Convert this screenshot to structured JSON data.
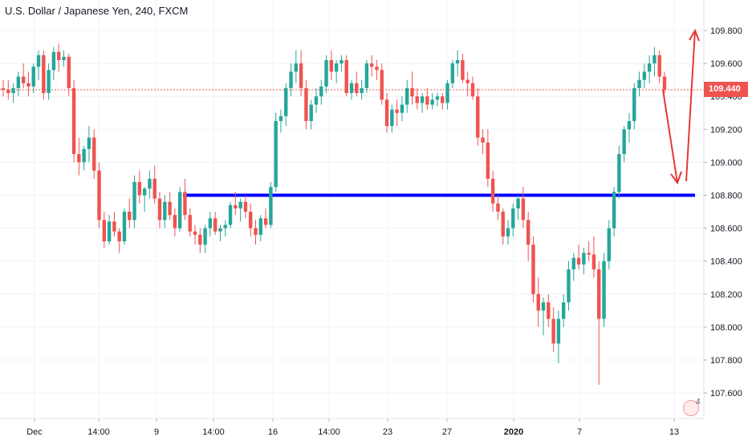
{
  "chart_data": {
    "type": "candlestick",
    "title": "U.S. Dollar / Japanese Yen, 240, FXCM",
    "ylim": [
      107.5,
      109.85
    ],
    "y_ticks": [
      "109.800",
      "109.600",
      "109.400",
      "109.200",
      "109.000",
      "108.800",
      "108.600",
      "108.400",
      "108.200",
      "108.000",
      "107.800",
      "107.600"
    ],
    "x_ticks": [
      "Dec",
      "14:00",
      "9",
      "14:00",
      "16",
      "14:00",
      "23",
      "27",
      "2020",
      "7",
      "13"
    ],
    "last_price": "109.440",
    "horizontal_line": 108.8,
    "colors": {
      "up": "#26a69a",
      "down": "#ef5350",
      "level": "#0000ff",
      "arrow": "#e53935",
      "price_line": "#ef5350"
    },
    "candles": [
      [
        109.45,
        109.5,
        109.4,
        109.44
      ],
      [
        109.44,
        109.5,
        109.38,
        109.42
      ],
      [
        109.42,
        109.48,
        109.36,
        109.45
      ],
      [
        109.45,
        109.55,
        109.4,
        109.52
      ],
      [
        109.52,
        109.6,
        109.45,
        109.48
      ],
      [
        109.48,
        109.55,
        109.4,
        109.46
      ],
      [
        109.46,
        109.6,
        109.42,
        109.58
      ],
      [
        109.58,
        109.68,
        109.5,
        109.65
      ],
      [
        109.65,
        109.68,
        109.38,
        109.42
      ],
      [
        109.42,
        109.6,
        109.38,
        109.56
      ],
      [
        109.56,
        109.7,
        109.5,
        109.67
      ],
      [
        109.67,
        109.72,
        109.55,
        109.62
      ],
      [
        109.62,
        109.68,
        109.58,
        109.64
      ],
      [
        109.64,
        109.66,
        109.4,
        109.45
      ],
      [
        109.45,
        109.5,
        109.0,
        109.05
      ],
      [
        109.05,
        109.15,
        108.92,
        109.0
      ],
      [
        109.0,
        109.1,
        108.95,
        109.08
      ],
      [
        109.08,
        109.22,
        109.0,
        109.15
      ],
      [
        109.15,
        109.2,
        108.9,
        108.95
      ],
      [
        108.95,
        109.0,
        108.6,
        108.65
      ],
      [
        108.65,
        108.7,
        108.48,
        108.52
      ],
      [
        108.52,
        108.68,
        108.5,
        108.64
      ],
      [
        108.64,
        108.7,
        108.55,
        108.58
      ],
      [
        108.58,
        108.6,
        108.45,
        108.52
      ],
      [
        108.52,
        108.72,
        108.5,
        108.7
      ],
      [
        108.7,
        108.78,
        108.6,
        108.65
      ],
      [
        108.65,
        108.92,
        108.6,
        108.88
      ],
      [
        108.88,
        108.95,
        108.75,
        108.8
      ],
      [
        108.8,
        108.85,
        108.7,
        108.84
      ],
      [
        108.84,
        108.95,
        108.78,
        108.9
      ],
      [
        108.9,
        108.98,
        108.75,
        108.78
      ],
      [
        108.78,
        108.82,
        108.6,
        108.65
      ],
      [
        108.65,
        108.8,
        108.6,
        108.76
      ],
      [
        108.76,
        108.82,
        108.65,
        108.68
      ],
      [
        108.68,
        108.72,
        108.55,
        108.6
      ],
      [
        108.6,
        108.85,
        108.58,
        108.82
      ],
      [
        108.82,
        108.9,
        108.65,
        108.68
      ],
      [
        108.68,
        108.72,
        108.55,
        108.58
      ],
      [
        108.58,
        108.62,
        108.5,
        108.56
      ],
      [
        108.56,
        108.6,
        108.45,
        108.5
      ],
      [
        108.5,
        108.62,
        108.45,
        108.6
      ],
      [
        108.6,
        108.7,
        108.55,
        108.66
      ],
      [
        108.66,
        108.7,
        108.56,
        108.58
      ],
      [
        108.58,
        108.62,
        108.52,
        108.6
      ],
      [
        108.6,
        108.65,
        108.55,
        108.62
      ],
      [
        108.62,
        108.76,
        108.6,
        108.74
      ],
      [
        108.74,
        108.82,
        108.68,
        108.72
      ],
      [
        108.72,
        108.78,
        108.64,
        108.76
      ],
      [
        108.76,
        108.8,
        108.66,
        108.7
      ],
      [
        108.7,
        108.75,
        108.55,
        108.6
      ],
      [
        108.6,
        108.65,
        108.5,
        108.56
      ],
      [
        108.56,
        108.68,
        108.52,
        108.66
      ],
      [
        108.66,
        108.72,
        108.6,
        108.62
      ],
      [
        108.62,
        108.88,
        108.6,
        108.85
      ],
      [
        108.85,
        109.3,
        108.82,
        109.25
      ],
      [
        109.25,
        109.32,
        109.18,
        109.28
      ],
      [
        109.28,
        109.48,
        109.22,
        109.45
      ],
      [
        109.45,
        109.6,
        109.4,
        109.55
      ],
      [
        109.55,
        109.68,
        109.48,
        109.6
      ],
      [
        109.6,
        109.68,
        109.4,
        109.45
      ],
      [
        109.45,
        109.5,
        109.2,
        109.25
      ],
      [
        109.25,
        109.38,
        109.2,
        109.35
      ],
      [
        109.35,
        109.45,
        109.3,
        109.4
      ],
      [
        109.4,
        109.5,
        109.35,
        109.46
      ],
      [
        109.46,
        109.65,
        109.42,
        109.62
      ],
      [
        109.62,
        109.68,
        109.5,
        109.55
      ],
      [
        109.55,
        109.62,
        109.48,
        109.6
      ],
      [
        109.6,
        109.65,
        109.55,
        109.62
      ],
      [
        109.62,
        109.65,
        109.4,
        109.42
      ],
      [
        109.42,
        109.5,
        109.38,
        109.48
      ],
      [
        109.48,
        109.55,
        109.4,
        109.42
      ],
      [
        109.42,
        109.5,
        109.38,
        109.45
      ],
      [
        109.45,
        109.62,
        109.42,
        109.6
      ],
      [
        109.6,
        109.65,
        109.52,
        109.58
      ],
      [
        109.58,
        109.62,
        109.5,
        109.56
      ],
      [
        109.56,
        109.6,
        109.35,
        109.38
      ],
      [
        109.38,
        109.42,
        109.18,
        109.22
      ],
      [
        109.22,
        109.35,
        109.18,
        109.32
      ],
      [
        109.32,
        109.38,
        109.22,
        109.3
      ],
      [
        109.3,
        109.4,
        109.25,
        109.35
      ],
      [
        109.35,
        109.5,
        109.3,
        109.45
      ],
      [
        109.45,
        109.55,
        109.35,
        109.4
      ],
      [
        109.4,
        109.45,
        109.32,
        109.36
      ],
      [
        109.36,
        109.42,
        109.3,
        109.4
      ],
      [
        109.4,
        109.45,
        109.32,
        109.35
      ],
      [
        109.35,
        109.42,
        109.32,
        109.38
      ],
      [
        109.38,
        109.42,
        109.34,
        109.4
      ],
      [
        109.4,
        109.42,
        109.32,
        109.36
      ],
      [
        109.36,
        109.5,
        109.32,
        109.48
      ],
      [
        109.48,
        109.62,
        109.45,
        109.6
      ],
      [
        109.6,
        109.68,
        109.52,
        109.62
      ],
      [
        109.62,
        109.66,
        109.48,
        109.5
      ],
      [
        109.5,
        109.55,
        109.4,
        109.48
      ],
      [
        109.48,
        109.52,
        109.38,
        109.4
      ],
      [
        109.4,
        109.45,
        109.1,
        109.15
      ],
      [
        109.15,
        109.2,
        109.05,
        109.12
      ],
      [
        109.12,
        109.2,
        108.85,
        108.9
      ],
      [
        108.9,
        108.95,
        108.7,
        108.75
      ],
      [
        108.75,
        108.8,
        108.65,
        108.7
      ],
      [
        108.7,
        108.72,
        108.5,
        108.55
      ],
      [
        108.55,
        108.65,
        108.5,
        108.6
      ],
      [
        108.6,
        108.75,
        108.55,
        108.72
      ],
      [
        108.72,
        108.8,
        108.65,
        108.78
      ],
      [
        108.78,
        108.85,
        108.6,
        108.65
      ],
      [
        108.65,
        108.7,
        108.4,
        108.5
      ],
      [
        108.5,
        108.55,
        108.15,
        108.2
      ],
      [
        108.2,
        108.3,
        108.0,
        108.1
      ],
      [
        108.1,
        108.18,
        107.95,
        108.15
      ],
      [
        108.15,
        108.2,
        108.0,
        108.05
      ],
      [
        108.05,
        108.12,
        107.85,
        107.9
      ],
      [
        107.9,
        108.1,
        107.78,
        108.05
      ],
      [
        108.05,
        108.2,
        108.0,
        108.15
      ],
      [
        108.15,
        108.4,
        108.1,
        108.35
      ],
      [
        108.35,
        108.45,
        108.28,
        108.42
      ],
      [
        108.42,
        108.5,
        108.35,
        108.38
      ],
      [
        108.38,
        108.48,
        108.32,
        108.45
      ],
      [
        108.45,
        108.52,
        108.4,
        108.44
      ],
      [
        108.44,
        108.55,
        108.3,
        108.35
      ],
      [
        108.35,
        108.4,
        107.65,
        108.05
      ],
      [
        108.05,
        108.45,
        108.0,
        108.4
      ],
      [
        108.4,
        108.65,
        108.35,
        108.6
      ],
      [
        108.6,
        108.85,
        108.55,
        108.82
      ],
      [
        108.82,
        109.1,
        108.78,
        109.05
      ],
      [
        109.05,
        109.22,
        109.0,
        109.2
      ],
      [
        109.2,
        109.3,
        109.12,
        109.25
      ],
      [
        109.25,
        109.48,
        109.2,
        109.45
      ],
      [
        109.45,
        109.55,
        109.4,
        109.5
      ],
      [
        109.5,
        109.6,
        109.45,
        109.55
      ],
      [
        109.55,
        109.65,
        109.48,
        109.6
      ],
      [
        109.6,
        109.7,
        109.52,
        109.65
      ],
      [
        109.65,
        109.68,
        109.48,
        109.52
      ],
      [
        109.52,
        109.55,
        109.42,
        109.44
      ]
    ]
  }
}
